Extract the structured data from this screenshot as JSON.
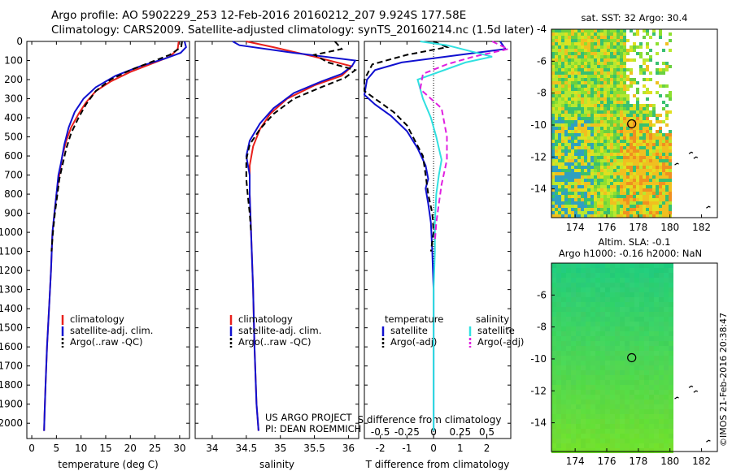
{
  "header": {
    "line1": "Argo profile: AO 5902229_253 12-Feb-2016 20160212_207 9.924S 177.58E",
    "line2": "Climatology: CARS2009. Satellite-adjusted climatology: synTS_20160214.nc (1.5d later)"
  },
  "colors": {
    "clim": "#e8201c",
    "sat": "#1010d0",
    "argo": "#000000",
    "sal_sat": "#30e0e0",
    "sal_argo": "#e020e0"
  },
  "credits": {
    "project": "US ARGO PROJECT",
    "pi": "PI: DEAN ROEMMICH",
    "imos": "©IMOS 21-Feb-2016 20:38:47"
  },
  "chart_data": [
    {
      "type": "line",
      "id": "temperature",
      "xlabel": "temperature (deg C)",
      "ylabel": "",
      "xlim": [
        -1,
        32
      ],
      "ylim": [
        2080,
        0
      ],
      "xticks": [
        0,
        5,
        10,
        15,
        20,
        25,
        30
      ],
      "yticks": [
        0,
        100,
        200,
        300,
        400,
        500,
        600,
        700,
        800,
        900,
        1000,
        1100,
        1200,
        1300,
        1400,
        1500,
        1600,
        1700,
        1800,
        1900,
        2000
      ],
      "legend": [
        "climatology",
        "satellite-adj. clim.",
        "Argo(..raw -QC)"
      ],
      "series": [
        {
          "name": "climatology",
          "color": "clim",
          "dash": false,
          "points": [
            [
              29.8,
              0
            ],
            [
              29.6,
              40
            ],
            [
              28,
              80
            ],
            [
              24,
              120
            ],
            [
              20,
              160
            ],
            [
              16,
              210
            ],
            [
              13,
              260
            ],
            [
              11,
              320
            ],
            [
              9.5,
              380
            ],
            [
              8,
              450
            ],
            [
              7,
              520
            ],
            [
              6.2,
              600
            ],
            [
              5.6,
              700
            ],
            [
              5,
              800
            ],
            [
              4.6,
              900
            ],
            [
              4.2,
              1000
            ],
            [
              3.9,
              1200
            ],
            [
              3.5,
              1400
            ],
            [
              3.1,
              1600
            ],
            [
              2.8,
              1800
            ],
            [
              2.6,
              1950
            ],
            [
              2.5,
              2040
            ]
          ]
        },
        {
          "name": "satellite-adj. clim.",
          "color": "sat",
          "dash": false,
          "points": [
            [
              31,
              0
            ],
            [
              31.3,
              30
            ],
            [
              30.2,
              60
            ],
            [
              27,
              90
            ],
            [
              22,
              130
            ],
            [
              17,
              180
            ],
            [
              13,
              240
            ],
            [
              10.5,
              300
            ],
            [
              8.7,
              370
            ],
            [
              7.5,
              450
            ],
            [
              6.6,
              540
            ],
            [
              5.9,
              640
            ],
            [
              5.4,
              700
            ],
            [
              5,
              800
            ],
            [
              4.6,
              900
            ],
            [
              4.2,
              1000
            ],
            [
              3.9,
              1200
            ],
            [
              3.5,
              1400
            ],
            [
              3.1,
              1600
            ],
            [
              2.8,
              1800
            ],
            [
              2.6,
              1950
            ],
            [
              2.5,
              2040
            ]
          ]
        },
        {
          "name": "Argo(..raw -QC)",
          "color": "argo",
          "dash": true,
          "points": [
            [
              30.5,
              0
            ],
            [
              30.3,
              30
            ],
            [
              28,
              70
            ],
            [
              24,
              110
            ],
            [
              20,
              150
            ],
            [
              16,
              200
            ],
            [
              13,
              260
            ],
            [
              11,
              330
            ],
            [
              9.5,
              400
            ],
            [
              8,
              480
            ],
            [
              7,
              560
            ],
            [
              6.3,
              640
            ],
            [
              5.6,
              720
            ],
            [
              5.2,
              800
            ],
            [
              4.7,
              900
            ],
            [
              4.3,
              1000
            ],
            [
              4,
              1100
            ]
          ]
        }
      ]
    },
    {
      "type": "line",
      "id": "salinity",
      "xlabel": "salinity",
      "ylabel": "",
      "xlim": [
        33.75,
        36.15
      ],
      "ylim": [
        2080,
        0
      ],
      "xticks": [
        34,
        34.5,
        35,
        35.5,
        36
      ],
      "legend": [
        "climatology",
        "satellite-adj. clim.",
        "Argo(..raw -QC)"
      ],
      "series": [
        {
          "name": "climatology",
          "color": "clim",
          "dash": false,
          "points": [
            [
              34.5,
              0
            ],
            [
              34.9,
              30
            ],
            [
              35.5,
              80
            ],
            [
              36.05,
              130
            ],
            [
              35.9,
              180
            ],
            [
              35.5,
              230
            ],
            [
              35.1,
              300
            ],
            [
              34.85,
              380
            ],
            [
              34.7,
              460
            ],
            [
              34.6,
              550
            ],
            [
              34.55,
              650
            ],
            [
              34.55,
              800
            ],
            [
              34.57,
              1000
            ],
            [
              34.6,
              1300
            ],
            [
              34.62,
              1600
            ],
            [
              34.65,
              1900
            ],
            [
              34.68,
              2040
            ]
          ]
        },
        {
          "name": "satellite-adj. clim.",
          "color": "sat",
          "dash": false,
          "points": [
            [
              34.3,
              0
            ],
            [
              34.4,
              20
            ],
            [
              35.2,
              60
            ],
            [
              36.1,
              100
            ],
            [
              36.05,
              130
            ],
            [
              35.9,
              170
            ],
            [
              35.6,
              210
            ],
            [
              35.2,
              270
            ],
            [
              34.9,
              350
            ],
            [
              34.7,
              430
            ],
            [
              34.55,
              520
            ],
            [
              34.5,
              600
            ],
            [
              34.55,
              700
            ],
            [
              34.55,
              800
            ],
            [
              34.57,
              1000
            ],
            [
              34.6,
              1300
            ],
            [
              34.62,
              1600
            ],
            [
              34.65,
              1900
            ],
            [
              34.68,
              2040
            ]
          ]
        },
        {
          "name": "Argo(..raw -QC)",
          "color": "argo",
          "dash": true,
          "points": [
            [
              35.8,
              0
            ],
            [
              35.9,
              40
            ],
            [
              35.5,
              70
            ],
            [
              35.7,
              110
            ],
            [
              36.1,
              150
            ],
            [
              35.95,
              190
            ],
            [
              35.6,
              240
            ],
            [
              35.2,
              300
            ],
            [
              34.9,
              380
            ],
            [
              34.7,
              460
            ],
            [
              34.55,
              540
            ],
            [
              34.5,
              620
            ],
            [
              34.5,
              720
            ],
            [
              34.52,
              800
            ],
            [
              34.55,
              900
            ],
            [
              34.57,
              1000
            ]
          ]
        }
      ]
    },
    {
      "type": "line",
      "id": "differences",
      "xlabel": "T difference from climatology",
      "xlabel_top": "S difference from climatology",
      "xlim": [
        -2.6,
        2.9
      ],
      "ylim": [
        2080,
        0
      ],
      "xticks": [
        -2,
        -1,
        0,
        1,
        2
      ],
      "xticks_top": [
        {
          "label": "-0.5",
          "pos": -2
        },
        {
          "label": "-0.25",
          "pos": -1
        },
        {
          "label": "0",
          "pos": 0
        },
        {
          "label": "0.25",
          "pos": 1
        },
        {
          "label": "0.5",
          "pos": 2
        }
      ],
      "legend_titles": [
        "temperature",
        "salinity"
      ],
      "legend": [
        "satellite",
        "Argo(-adj)",
        "satellite",
        "Argo(-adj)"
      ],
      "series": [
        {
          "name": "T satellite",
          "color": "sat",
          "dash": false,
          "points": [
            [
              2.5,
              0
            ],
            [
              2.7,
              40
            ],
            [
              1,
              70
            ],
            [
              -1.2,
              110
            ],
            [
              -2.2,
              150
            ],
            [
              -2.5,
              200
            ],
            [
              -2.6,
              280
            ],
            [
              -2.2,
              330
            ],
            [
              -1.6,
              390
            ],
            [
              -1,
              470
            ],
            [
              -0.6,
              560
            ],
            [
              -0.3,
              650
            ],
            [
              -0.2,
              720
            ],
            [
              -0.3,
              770
            ],
            [
              -0.2,
              850
            ],
            [
              -0.1,
              950
            ],
            [
              -0.05,
              1100
            ],
            [
              0,
              1300
            ],
            [
              0,
              2040
            ]
          ]
        },
        {
          "name": "T Argo(-adj)",
          "color": "argo",
          "dash": true,
          "points": [
            [
              0,
              0
            ],
            [
              0.5,
              30
            ],
            [
              -1,
              70
            ],
            [
              -2.3,
              120
            ],
            [
              -2.6,
              200
            ],
            [
              -2.6,
              260
            ],
            [
              -2,
              320
            ],
            [
              -1.5,
              370
            ],
            [
              -1,
              440
            ],
            [
              -0.7,
              520
            ],
            [
              -0.4,
              600
            ],
            [
              -0.3,
              700
            ],
            [
              -0.2,
              800
            ],
            [
              -0.05,
              900
            ],
            [
              0,
              1000
            ],
            [
              -0.1,
              1100
            ]
          ]
        },
        {
          "name": "S satellite",
          "color": "sal_sat",
          "dash": false,
          "points": [
            [
              -0.5,
              0
            ],
            [
              0.5,
              20
            ],
            [
              2.2,
              80
            ],
            [
              1.2,
              110
            ],
            [
              -0.6,
              200
            ],
            [
              -0.4,
              300
            ],
            [
              -0.1,
              400
            ],
            [
              0.1,
              500
            ],
            [
              0.3,
              620
            ],
            [
              0.2,
              700
            ],
            [
              0.1,
              800
            ],
            [
              0.05,
              950
            ],
            [
              0.05,
              1100
            ],
            [
              0,
              1300
            ],
            [
              0,
              2040
            ]
          ]
        },
        {
          "name": "S Argo(-adj)",
          "color": "sal_argo",
          "dash": true,
          "points": [
            [
              2.2,
              0
            ],
            [
              2.8,
              40
            ],
            [
              1.5,
              80
            ],
            [
              0.5,
              120
            ],
            [
              -0.4,
              170
            ],
            [
              -0.5,
              250
            ],
            [
              0.3,
              350
            ],
            [
              0.5,
              500
            ],
            [
              0.5,
              620
            ],
            [
              0.3,
              750
            ],
            [
              0.2,
              850
            ],
            [
              0.1,
              950
            ],
            [
              0.05,
              1050
            ]
          ]
        }
      ]
    },
    {
      "type": "heatmap",
      "id": "sst-map",
      "title": "sat. SST: 32 Argo: 30.4",
      "xlim": [
        172.5,
        183
      ],
      "ylim": [
        -15.8,
        -4
      ],
      "xticks": [
        174,
        176,
        178,
        180,
        182
      ],
      "yticks": [
        -4,
        -6,
        -8,
        -10,
        -12,
        -14
      ],
      "float": [
        177.58,
        -9.924
      ]
    },
    {
      "type": "heatmap",
      "id": "sla-map",
      "title": "Altim. SLA: -0.1",
      "subtitle": "Argo h1000: -0.16 h2000: NaN",
      "xlim": [
        172.5,
        183
      ],
      "ylim": [
        -15.8,
        -4
      ],
      "xticks": [
        174,
        176,
        178,
        180,
        182
      ],
      "yticks": [
        -6,
        -8,
        -10,
        -12,
        -14
      ],
      "float": [
        177.58,
        -9.924
      ]
    }
  ]
}
